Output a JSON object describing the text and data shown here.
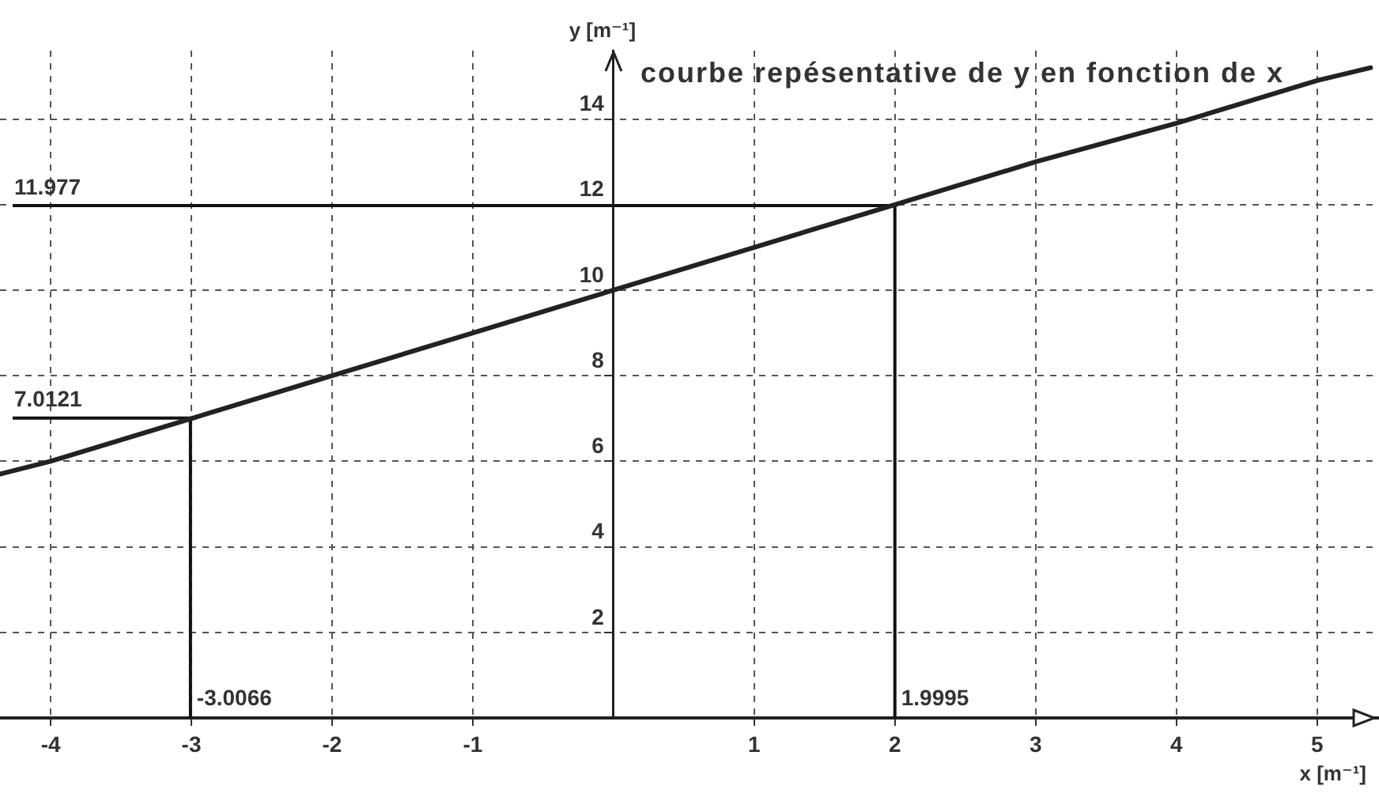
{
  "chart_data": {
    "type": "line",
    "title": "courbe repésentative de y en fonction de x",
    "xlabel": "x [m⁻¹]",
    "ylabel": "y [m⁻¹]",
    "x": [
      -4.36,
      -4,
      -3,
      -2,
      -1,
      0,
      1,
      2,
      3,
      4,
      5,
      5.38
    ],
    "series": [
      {
        "color": "#222222",
        "values": [
          5.7,
          6.0,
          7.0,
          8.0,
          9.0,
          10.0,
          11.0,
          12.0,
          13.0,
          13.9,
          14.9,
          15.2
        ]
      }
    ],
    "xlim": [
      -4.36,
      5.44
    ],
    "ylim": [
      0,
      15.6
    ],
    "xticks": [
      -4,
      -3,
      -2,
      -1,
      1,
      2,
      3,
      4,
      5
    ],
    "yticks": [
      2,
      4,
      6,
      8,
      10,
      12,
      14
    ],
    "ref_lines": [
      {
        "axis": "y",
        "value": 11.977,
        "label": "11.977",
        "color": "#111111"
      },
      {
        "axis": "x",
        "value": 1.9995,
        "label": "1.9995",
        "color": "#111111"
      },
      {
        "axis": "y",
        "value": 7.0121,
        "label": "7.0121",
        "color": "#111111"
      },
      {
        "axis": "x",
        "value": -3.0066,
        "label": "-3.0066",
        "color": "#111111"
      }
    ],
    "grid": true,
    "marker": "none",
    "line_style": "solid"
  }
}
